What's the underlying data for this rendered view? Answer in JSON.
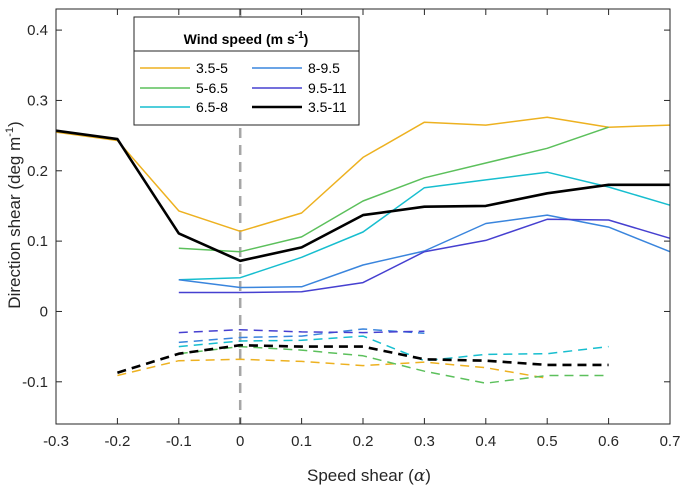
{
  "chart_data": {
    "type": "line",
    "xlabel_main": "Speed shear (",
    "xlabel_symbol": "α",
    "xlabel_end": ")",
    "ylabel": "Direction shear (deg m",
    "ylabel_sup": "-1",
    "ylabel_end": ")",
    "xlim": [
      -0.3,
      0.7
    ],
    "ylim": [
      -0.16,
      0.43
    ],
    "xticks": [
      -0.3,
      -0.2,
      -0.1,
      0,
      0.1,
      0.2,
      0.3,
      0.4,
      0.5,
      0.6,
      0.7
    ],
    "xtick_labels": [
      "-0.3",
      "-0.2",
      "-0.1",
      "0",
      "0.1",
      "0.2",
      "0.3",
      "0.4",
      "0.5",
      "0.6",
      "0.7"
    ],
    "yticks": [
      -0.1,
      0,
      0.1,
      0.2,
      0.3,
      0.4
    ],
    "ytick_labels": [
      "-0.1",
      "0",
      "0.1",
      "0.2",
      "0.3",
      "0.4"
    ],
    "legend": {
      "title_main": "Wind speed (m s",
      "title_sup": "-1",
      "title_end": ")",
      "placement": "top-left"
    },
    "vline": {
      "x": 0,
      "color": "#a6a6a6",
      "style": "dashed"
    },
    "series": [
      {
        "name": "3.5-5",
        "color": "#EDB120",
        "x": [
          -0.3,
          -0.2,
          -0.1,
          0,
          0.1,
          0.2,
          0.3,
          0.4,
          0.5,
          0.6,
          0.7
        ],
        "y": [
          0.255,
          0.243,
          0.143,
          0.114,
          0.14,
          0.219,
          0.269,
          0.265,
          0.276,
          0.262,
          0.265
        ]
      },
      {
        "name": "5-6.5",
        "color": "#5CC05C",
        "x": [
          -0.1,
          0,
          0.1,
          0.2,
          0.3,
          0.4,
          0.5,
          0.6
        ],
        "y": [
          0.09,
          0.085,
          0.106,
          0.157,
          0.19,
          0.211,
          0.232,
          0.262
        ]
      },
      {
        "name": "6.5-8",
        "color": "#17BECF",
        "x": [
          -0.1,
          0,
          0.1,
          0.2,
          0.3,
          0.4,
          0.5,
          0.6,
          0.7
        ],
        "y": [
          0.045,
          0.048,
          0.077,
          0.113,
          0.176,
          0.187,
          0.198,
          0.177,
          0.151
        ]
      },
      {
        "name": "8-9.5",
        "color": "#3A85DD",
        "x": [
          -0.1,
          0,
          0.1,
          0.2,
          0.3,
          0.4,
          0.5,
          0.6,
          0.7
        ],
        "y": [
          0.045,
          0.034,
          0.035,
          0.066,
          0.086,
          0.125,
          0.137,
          0.12,
          0.085
        ]
      },
      {
        "name": "9.5-11",
        "color": "#4640D0",
        "x": [
          -0.1,
          0,
          0.1,
          0.2,
          0.3,
          0.4,
          0.5,
          0.6,
          0.7
        ],
        "y": [
          0.027,
          0.027,
          0.028,
          0.041,
          0.085,
          0.101,
          0.131,
          0.13,
          0.104
        ]
      },
      {
        "name": "3.5-11",
        "color": "#000000",
        "width": 2.6,
        "x": [
          -0.3,
          -0.2,
          -0.1,
          0,
          0.1,
          0.2,
          0.3,
          0.4,
          0.5,
          0.6,
          0.7
        ],
        "y": [
          0.257,
          0.245,
          0.111,
          0.072,
          0.091,
          0.137,
          0.149,
          0.15,
          0.168,
          0.18,
          0.18
        ]
      }
    ],
    "dashed_series": [
      {
        "color": "#EDB120",
        "x": [
          -0.2,
          -0.1,
          0,
          0.1,
          0.2,
          0.3,
          0.4,
          0.5
        ],
        "y": [
          -0.091,
          -0.07,
          -0.068,
          -0.071,
          -0.077,
          -0.072,
          -0.08,
          -0.095
        ]
      },
      {
        "color": "#5CC05C",
        "x": [
          -0.1,
          0,
          0.1,
          0.2,
          0.3,
          0.4,
          0.5,
          0.6
        ],
        "y": [
          -0.06,
          -0.05,
          -0.055,
          -0.063,
          -0.085,
          -0.102,
          -0.091,
          -0.091
        ]
      },
      {
        "color": "#17BECF",
        "x": [
          -0.1,
          0,
          0.1,
          0.2,
          0.3,
          0.4,
          0.5,
          0.6
        ],
        "y": [
          -0.05,
          -0.042,
          -0.041,
          -0.035,
          -0.07,
          -0.061,
          -0.06,
          -0.05
        ]
      },
      {
        "color": "#3A85DD",
        "x": [
          -0.1,
          0,
          0.1,
          0.2,
          0.3
        ],
        "y": [
          -0.044,
          -0.037,
          -0.035,
          -0.025,
          -0.031
        ]
      },
      {
        "color": "#4640D0",
        "x": [
          -0.1,
          0,
          0.1,
          0.2,
          0.3
        ],
        "y": [
          -0.03,
          -0.026,
          -0.029,
          -0.03,
          -0.028
        ]
      },
      {
        "color": "#000000",
        "width": 2.6,
        "x": [
          -0.2,
          -0.1,
          0,
          0.1,
          0.2,
          0.3,
          0.4,
          0.5,
          0.6
        ],
        "y": [
          -0.087,
          -0.06,
          -0.048,
          -0.05,
          -0.05,
          -0.068,
          -0.07,
          -0.076,
          -0.076
        ]
      }
    ]
  }
}
